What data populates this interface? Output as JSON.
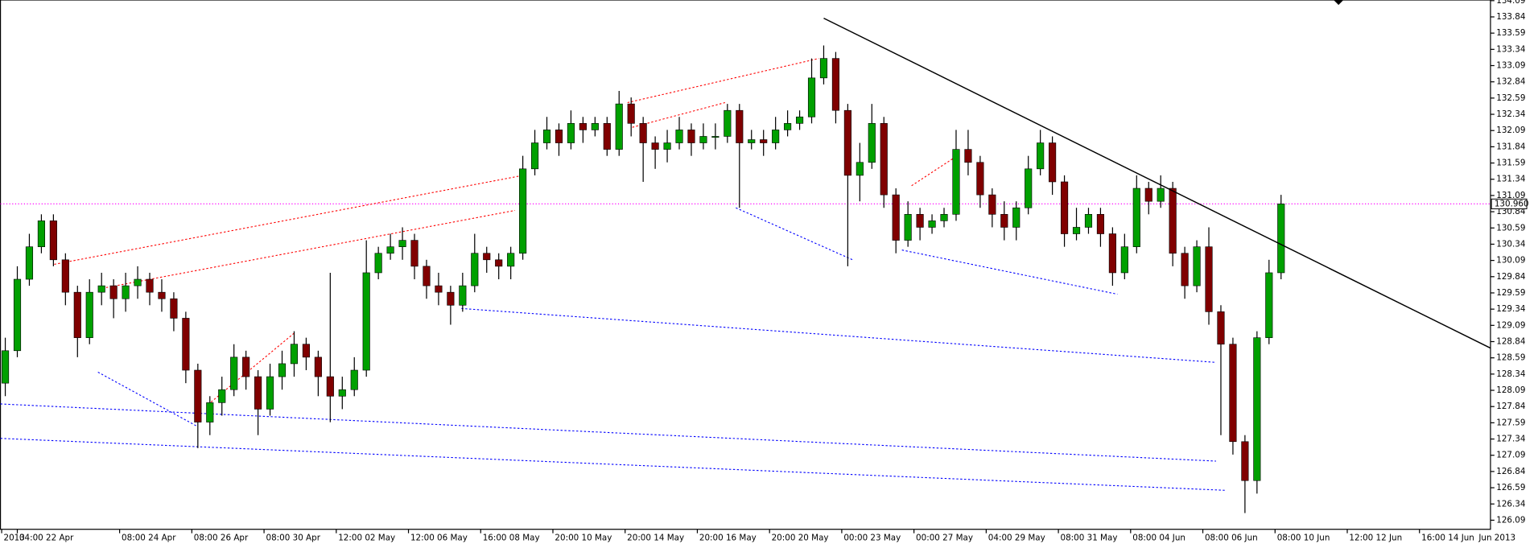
{
  "chart_data": {
    "type": "candlestick",
    "up_color": "#00a000",
    "down_color": "#800000",
    "wick_color": "#000000",
    "xlim": [
      -0.4,
      123.4
    ],
    "xticks": [
      {
        "value": -0.3,
        "label": "2013"
      },
      {
        "value": 1,
        "label": "04:00 22 Apr"
      },
      {
        "value": 9.5,
        "label": "08:00 24 Apr"
      },
      {
        "value": 15.5,
        "label": "08:00 26 Apr"
      },
      {
        "value": 21.5,
        "label": "08:00 30 Apr"
      },
      {
        "value": 27.5,
        "label": "12:00 02 May"
      },
      {
        "value": 33.5,
        "label": "12:00 06 May"
      },
      {
        "value": 39.5,
        "label": "16:00 08 May"
      },
      {
        "value": 45.5,
        "label": "20:00 10 May"
      },
      {
        "value": 51.5,
        "label": "20:00 14 May"
      },
      {
        "value": 57.5,
        "label": "20:00 16 May"
      },
      {
        "value": 63.5,
        "label": "20:00 20 May"
      },
      {
        "value": 69.5,
        "label": "00:00 23 May"
      },
      {
        "value": 75.5,
        "label": "00:00 27 May"
      },
      {
        "value": 81.5,
        "label": "04:00 29 May"
      },
      {
        "value": 87.5,
        "label": "08:00 31 May"
      },
      {
        "value": 93.5,
        "label": "08:00 04 Jun"
      },
      {
        "value": 99.5,
        "label": "08:00 06 Jun"
      },
      {
        "value": 105.5,
        "label": "08:00 10 Jun"
      },
      {
        "value": 111.5,
        "label": "12:00 12 Jun"
      },
      {
        "value": 117.5,
        "label": "16:00 14 Jun"
      }
    ],
    "x_end_label": "Jun 2013",
    "ylim": [
      125.95,
      134.1
    ],
    "yticks": [
      126.09,
      126.34,
      126.59,
      126.84,
      127.09,
      127.34,
      127.59,
      127.84,
      128.09,
      128.34,
      128.59,
      128.84,
      129.09,
      129.34,
      129.59,
      129.84,
      130.09,
      130.34,
      130.59,
      130.84,
      131.09,
      131.34,
      131.59,
      131.84,
      132.09,
      132.34,
      132.59,
      132.84,
      133.09,
      133.34,
      133.59,
      133.84,
      134.09
    ],
    "price_line": {
      "value": 130.96,
      "label": "130.960",
      "color": "#ff00ff"
    },
    "open": [
      128.2,
      128.7,
      129.8,
      130.3,
      130.7,
      130.1,
      129.6,
      128.9,
      129.6,
      129.7,
      129.5,
      129.7,
      129.8,
      129.6,
      129.5,
      129.2,
      128.4,
      127.6,
      127.9,
      128.1,
      128.6,
      128.3,
      127.8,
      128.3,
      128.5,
      128.8,
      128.6,
      128.3,
      128.0,
      128.1,
      128.4,
      129.9,
      130.2,
      130.3,
      130.4,
      130.0,
      129.7,
      129.6,
      129.4,
      129.7,
      130.2,
      130.1,
      130.0,
      130.2,
      131.5,
      131.9,
      132.1,
      131.9,
      132.2,
      132.1,
      132.2,
      131.8,
      132.5,
      132.2,
      131.9,
      131.8,
      131.9,
      132.1,
      131.9,
      132.0,
      132.0,
      132.4,
      131.9,
      131.95,
      131.9,
      132.1,
      132.2,
      132.3,
      132.9,
      133.2,
      132.4,
      131.4,
      131.6,
      132.2,
      131.1,
      130.4,
      130.8,
      130.6,
      130.7,
      130.8,
      131.8,
      131.6,
      131.1,
      130.8,
      130.6,
      130.9,
      131.5,
      131.9,
      131.3,
      130.5,
      130.6,
      130.8,
      130.5,
      129.9,
      130.3,
      131.2,
      131.0,
      131.2,
      130.2,
      129.7,
      130.3,
      129.3,
      128.8,
      127.3,
      126.7,
      128.9,
      129.9
    ],
    "high": [
      128.9,
      130.0,
      130.5,
      130.8,
      130.8,
      130.2,
      129.7,
      129.8,
      129.9,
      129.8,
      129.9,
      130.0,
      129.9,
      129.8,
      129.6,
      129.3,
      128.5,
      128.0,
      128.3,
      128.8,
      128.7,
      128.4,
      128.5,
      128.7,
      129.0,
      128.9,
      128.7,
      129.9,
      128.3,
      128.6,
      130.4,
      130.3,
      130.5,
      130.6,
      130.5,
      130.1,
      129.9,
      129.7,
      129.9,
      130.5,
      130.3,
      130.2,
      130.3,
      131.7,
      132.1,
      132.3,
      132.2,
      132.4,
      132.3,
      132.3,
      132.3,
      132.7,
      132.6,
      132.3,
      132.0,
      132.1,
      132.3,
      132.2,
      132.2,
      132.2,
      132.5,
      132.5,
      132.1,
      132.1,
      132.3,
      132.4,
      132.4,
      133.2,
      133.4,
      133.3,
      132.5,
      131.9,
      132.5,
      132.3,
      131.2,
      131.0,
      130.9,
      130.8,
      130.9,
      132.1,
      132.1,
      131.7,
      131.2,
      131.0,
      131.0,
      131.7,
      132.1,
      132.0,
      131.4,
      130.9,
      130.9,
      130.9,
      130.6,
      130.5,
      131.4,
      131.3,
      131.4,
      131.3,
      130.3,
      130.4,
      130.6,
      129.4,
      128.9,
      127.4,
      129.0,
      130.1,
      131.1
    ],
    "low": [
      128.0,
      128.6,
      129.7,
      130.2,
      130.0,
      129.4,
      128.6,
      128.8,
      129.4,
      129.2,
      129.3,
      129.5,
      129.4,
      129.3,
      129.0,
      128.2,
      127.2,
      127.4,
      127.7,
      128.0,
      128.1,
      127.4,
      127.7,
      128.1,
      128.3,
      128.4,
      128.0,
      127.6,
      127.8,
      128.0,
      128.3,
      129.8,
      130.1,
      130.1,
      129.8,
      129.5,
      129.4,
      129.1,
      129.3,
      129.6,
      129.9,
      129.8,
      129.8,
      130.1,
      131.4,
      131.8,
      131.7,
      131.8,
      131.9,
      132.0,
      131.7,
      131.7,
      132.0,
      131.3,
      131.5,
      131.6,
      131.8,
      131.7,
      131.8,
      131.8,
      131.9,
      130.9,
      131.8,
      131.7,
      131.8,
      132.0,
      132.1,
      132.2,
      132.8,
      132.2,
      130.0,
      131.0,
      131.5,
      130.9,
      130.2,
      130.3,
      130.4,
      130.5,
      130.6,
      130.7,
      131.4,
      130.9,
      130.6,
      130.4,
      130.4,
      130.8,
      131.4,
      131.1,
      130.3,
      130.4,
      130.5,
      130.3,
      129.7,
      129.8,
      130.2,
      130.8,
      130.9,
      130.0,
      129.5,
      129.6,
      129.1,
      127.4,
      127.1,
      126.2,
      126.5,
      128.8,
      129.8
    ],
    "close": [
      128.7,
      129.8,
      130.3,
      130.7,
      130.1,
      129.6,
      128.9,
      129.6,
      129.7,
      129.5,
      129.7,
      129.8,
      129.6,
      129.5,
      129.2,
      128.4,
      127.6,
      127.9,
      128.1,
      128.6,
      128.3,
      127.8,
      128.3,
      128.5,
      128.8,
      128.6,
      128.3,
      128.0,
      128.1,
      128.4,
      129.9,
      130.2,
      130.3,
      130.4,
      130.0,
      129.7,
      129.6,
      129.4,
      129.7,
      130.2,
      130.1,
      130.0,
      130.2,
      131.5,
      131.9,
      132.1,
      131.9,
      132.2,
      132.1,
      132.2,
      131.8,
      132.5,
      132.2,
      131.9,
      131.8,
      131.9,
      132.1,
      131.9,
      132.0,
      132.0,
      132.4,
      131.9,
      131.95,
      131.9,
      132.1,
      132.2,
      132.3,
      132.9,
      133.2,
      132.4,
      131.4,
      131.6,
      132.2,
      131.1,
      130.4,
      130.8,
      130.6,
      130.7,
      130.8,
      131.8,
      131.6,
      131.1,
      130.8,
      130.6,
      130.9,
      131.5,
      131.9,
      131.3,
      130.5,
      130.6,
      130.8,
      130.5,
      129.9,
      130.3,
      131.2,
      131.0,
      131.2,
      130.2,
      129.7,
      130.3,
      129.3,
      128.8,
      127.3,
      126.7,
      128.9,
      129.9,
      130.96
    ],
    "trendline": {
      "color": "#000000",
      "x": [
        68,
        123.4
      ],
      "y": [
        133.82,
        128.74
      ]
    },
    "lines": [
      {
        "color": "#ff0000",
        "x": [
          4.07,
          42.75
        ],
        "y": [
          130.03,
          131.39
        ]
      },
      {
        "color": "#ff0000",
        "x": [
          7.74,
          42.35
        ],
        "y": [
          129.65,
          130.86
        ]
      },
      {
        "color": "#ff0000",
        "x": [
          51.7,
          67.6
        ],
        "y": [
          132.52,
          133.2
        ]
      },
      {
        "color": "#ff0000",
        "x": [
          52.1,
          59.8
        ],
        "y": [
          132.14,
          132.52
        ]
      },
      {
        "color": "#ff0000",
        "x": [
          17.1,
          24.0
        ],
        "y": [
          127.91,
          128.97
        ]
      },
      {
        "color": "#ff0000",
        "x": [
          75.3,
          79.0
        ],
        "y": [
          131.24,
          131.69
        ]
      },
      {
        "color": "#0000ff",
        "x": [
          -0.4,
          100.6
        ],
        "y": [
          127.88,
          127.0
        ]
      },
      {
        "color": "#0000ff",
        "x": [
          -0.4,
          101.4
        ],
        "y": [
          127.35,
          126.55
        ]
      },
      {
        "color": "#0000ff",
        "x": [
          37.9,
          100.6
        ],
        "y": [
          129.35,
          128.52
        ]
      },
      {
        "color": "#0000ff",
        "x": [
          60.7,
          70.4
        ],
        "y": [
          130.9,
          130.1
        ]
      },
      {
        "color": "#0000ff",
        "x": [
          74.5,
          92.4
        ],
        "y": [
          130.25,
          129.57
        ]
      },
      {
        "color": "#0000ff",
        "x": [
          7.7,
          15.9
        ],
        "y": [
          128.37,
          127.54
        ]
      }
    ]
  }
}
